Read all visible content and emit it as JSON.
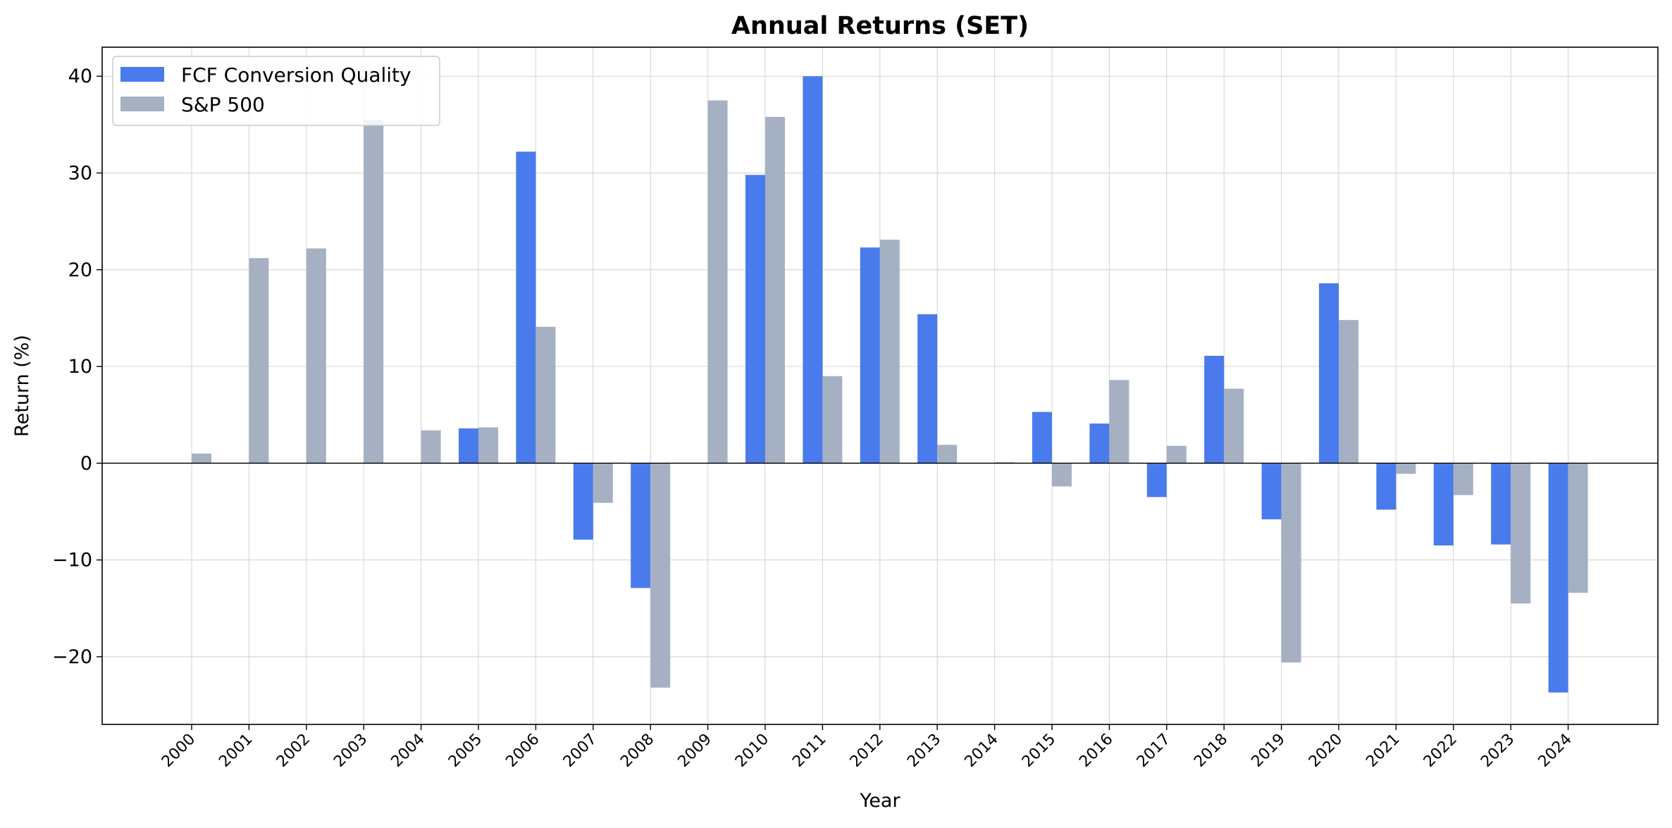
{
  "chart_data": {
    "type": "bar",
    "title": "Annual Returns (SET)",
    "xlabel": "Year",
    "ylabel": "Return (%)",
    "ylim": [
      -27,
      43
    ],
    "yticks": [
      -20,
      -10,
      0,
      10,
      20,
      30,
      40
    ],
    "ytick_labels": [
      "−20",
      "−10",
      "0",
      "10",
      "20",
      "30",
      "40"
    ],
    "grid": true,
    "legend_position": "top-left",
    "categories": [
      "2000",
      "2001",
      "2002",
      "2003",
      "2004",
      "2005",
      "2006",
      "2007",
      "2008",
      "2009",
      "2010",
      "2011",
      "2012",
      "2013",
      "2014",
      "2015",
      "2016",
      "2017",
      "2018",
      "2019",
      "2020",
      "2021",
      "2022",
      "2023",
      "2024"
    ],
    "series": [
      {
        "name": "FCF Conversion Quality",
        "color": "#4a7bec",
        "values": [
          0,
          0,
          0,
          0,
          0,
          3.6,
          32.2,
          -7.9,
          -12.9,
          0,
          29.8,
          40.0,
          22.3,
          15.4,
          0,
          5.3,
          4.1,
          -3.5,
          11.1,
          -5.8,
          18.6,
          -4.8,
          -8.5,
          -8.4,
          -23.7
        ]
      },
      {
        "name": "S&P 500",
        "color": "#a5b1c2",
        "values": [
          1.0,
          21.2,
          22.2,
          35.5,
          3.4,
          3.7,
          14.1,
          -4.1,
          -23.2,
          37.5,
          35.8,
          9.0,
          23.1,
          1.9,
          0.1,
          -2.4,
          8.6,
          1.8,
          7.7,
          -20.6,
          14.8,
          -1.1,
          -3.3,
          -14.5,
          -13.4
        ]
      }
    ]
  }
}
